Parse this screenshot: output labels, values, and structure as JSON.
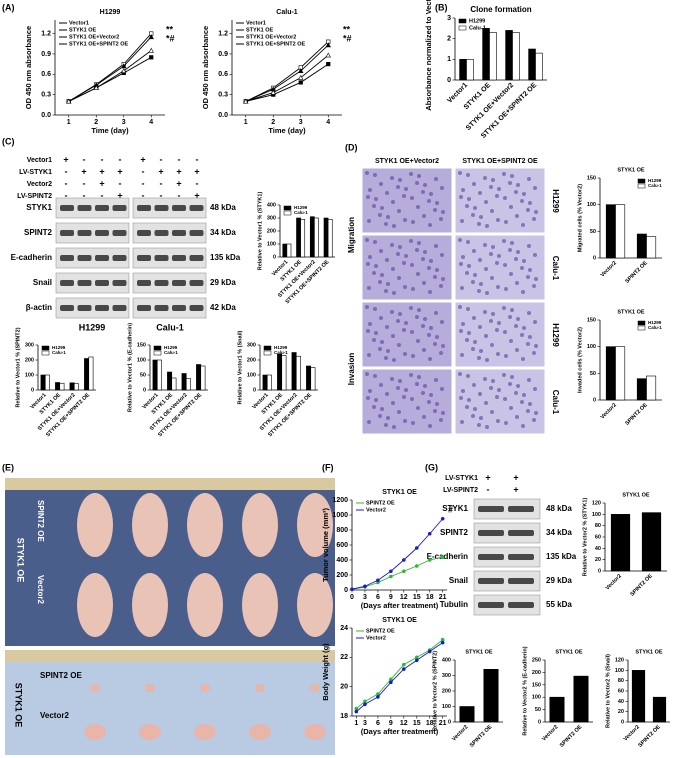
{
  "figure": {
    "panel_labels": [
      "(A)",
      "(B)",
      "(C)",
      "(D)",
      "(E)",
      "(F)",
      "(G)"
    ],
    "c_blot": {
      "conditions": [
        "Vector1",
        "LV-STYK1",
        "Vector2",
        "LV-SPINT2"
      ],
      "signs": [
        [
          "+",
          "-",
          "-",
          "-",
          "+",
          "-",
          "-",
          "-"
        ],
        [
          "-",
          "+",
          "+",
          "+",
          "-",
          "+",
          "+",
          "+"
        ],
        [
          "-",
          "-",
          "+",
          "-",
          "-",
          "-",
          "+",
          "-"
        ],
        [
          "-",
          "-",
          "-",
          "+",
          "-",
          "-",
          "-",
          "+"
        ]
      ],
      "proteins": [
        "STYK1",
        "SPINT2",
        "E-cadherin",
        "Snail",
        "β-actin"
      ],
      "sizes": [
        "48 kDa",
        "34 kDa",
        "135 kDa",
        "29 kDa",
        "42 kDa"
      ],
      "cell_lines": [
        "H1299",
        "Calu-1"
      ]
    },
    "d_images": {
      "columns": [
        "STYK1 OE+Vector2",
        "STYK1 OE+SPINT2 OE"
      ],
      "assays": [
        "Migration",
        "Invasion"
      ],
      "rows": [
        "H1299",
        "Calu-1",
        "H1299",
        "Calu-1"
      ]
    },
    "e_photo": {
      "upper_groups": [
        "SPINT2 OE",
        "Vector2"
      ],
      "upper_side": "STYK1 OE",
      "lower_groups": [
        "SPINT2 OE",
        "Vector2"
      ],
      "lower_side": "STYK1 OE"
    },
    "g_blot": {
      "conditions": [
        "LV-STYK1",
        "LV-SPINT2"
      ],
      "signs": [
        [
          "+",
          "+"
        ],
        [
          "-",
          "+"
        ]
      ],
      "proteins": [
        "STYK1",
        "SPINT2",
        "E-cadherin",
        "Snail",
        "Tubulin"
      ],
      "sizes": [
        "48 kDa",
        "34 kDa",
        "135 kDa",
        "29 kDa",
        "55 kDa"
      ]
    }
  },
  "chart_data": [
    {
      "type": "line",
      "title": "H1299",
      "xlabel": "Time (day)",
      "ylabel": "OD 450 nm absorbance",
      "x": [
        1,
        2,
        3,
        4
      ],
      "xlim": [
        0.5,
        4.5
      ],
      "xticks": [
        1,
        2,
        3,
        4
      ],
      "ylim": [
        0,
        1.4
      ],
      "yticks": [
        {
          "value": 0,
          "label": "0.0"
        },
        0.3,
        0.6,
        0.9,
        1.2
      ],
      "legend": "upper left",
      "annotations": [
        "**",
        "*#"
      ],
      "series": [
        {
          "name": "Vector1",
          "color": "#000000",
          "values": [
            0.2,
            0.4,
            0.62,
            0.85
          ]
        },
        {
          "name": "STYK1 OE",
          "color": "#000000",
          "values": [
            0.2,
            0.45,
            0.75,
            1.2
          ]
        },
        {
          "name": "STYK1 OE+Vector2",
          "color": "#000000",
          "values": [
            0.2,
            0.44,
            0.72,
            1.15
          ]
        },
        {
          "name": "STYK1 OE+SPINT2 OE",
          "color": "#000000",
          "values": [
            0.2,
            0.4,
            0.65,
            0.95
          ]
        }
      ]
    },
    {
      "type": "line",
      "title": "Calu-1",
      "xlabel": "Time (day)",
      "ylabel": "OD 450 nm absorbance",
      "x": [
        1,
        2,
        3,
        4
      ],
      "xlim": [
        0.5,
        4.5
      ],
      "xticks": [
        1,
        2,
        3,
        4
      ],
      "ylim": [
        0,
        1.4
      ],
      "yticks": [
        {
          "value": 0,
          "label": "0.0"
        },
        0.3,
        0.6,
        0.9,
        1.2
      ],
      "legend": "upper left",
      "annotations": [
        "**",
        "*#"
      ],
      "series": [
        {
          "name": "Vector1",
          "color": "#000000",
          "values": [
            0.2,
            0.3,
            0.48,
            0.75
          ]
        },
        {
          "name": "STYK1 OE",
          "color": "#000000",
          "values": [
            0.2,
            0.4,
            0.7,
            1.08
          ]
        },
        {
          "name": "STYK1 OE+Vector2",
          "color": "#000000",
          "values": [
            0.2,
            0.38,
            0.65,
            1.03
          ]
        },
        {
          "name": "STYK1 OE+SPINT2 OE",
          "color": "#000000",
          "values": [
            0.2,
            0.33,
            0.55,
            0.88
          ]
        }
      ]
    },
    {
      "type": "bar",
      "title": "Clone formation",
      "ylabel": "Absorbance normalized to Vector1",
      "categories": [
        "Vector1",
        "STYK1 OE",
        "STYK1 OE+Vector2",
        "STYK1 OE+SPINT2 OE"
      ],
      "ylim": [
        0,
        3
      ],
      "yticks": [
        0,
        1,
        2,
        3
      ],
      "legend": "upper left",
      "series": [
        {
          "name": "H1299",
          "color": "#000000",
          "values": [
            1,
            2.5,
            2.4,
            1.5
          ]
        },
        {
          "name": "Calu-1",
          "color": "#ffffff",
          "values": [
            1,
            2.3,
            2.3,
            1.3
          ]
        }
      ]
    },
    {
      "type": "bar",
      "ylabel": "Relative to Vector1 % (STYK1)",
      "categories": [
        "Vector1",
        "STYK1 OE",
        "STYK1 OE+Vector2",
        "STYK1 OE+SPINT2 OE"
      ],
      "ylim": [
        0,
        400
      ],
      "yticks": [
        0,
        100,
        200,
        300,
        400
      ],
      "legend": "upper left",
      "series": [
        {
          "name": "H1299",
          "color": "#000000",
          "values": [
            100,
            300,
            310,
            300
          ]
        },
        {
          "name": "Calu-1",
          "color": "#ffffff",
          "values": [
            100,
            290,
            300,
            290
          ]
        }
      ]
    },
    {
      "type": "bar",
      "ylabel": "Relative to Vector1 % (SPINT2)",
      "categories": [
        "Vector1",
        "STYK1 OE",
        "STYK1 OE+Vector2",
        "STYK1 OE+SPINT2 OE"
      ],
      "ylim": [
        0,
        300
      ],
      "yticks": [
        0,
        100,
        200,
        300
      ],
      "legend": "upper left",
      "series": [
        {
          "name": "H1299",
          "color": "#000000",
          "values": [
            100,
            50,
            48,
            210
          ]
        },
        {
          "name": "Calu-1",
          "color": "#ffffff",
          "values": [
            100,
            45,
            42,
            220
          ]
        }
      ]
    },
    {
      "type": "bar",
      "ylabel": "Relative to Vector1 % (E-cadherin)",
      "categories": [
        "Vector1",
        "STYK1 OE",
        "STYK1 OE+Vector2",
        "STYK1 OE+SPINT2 OE"
      ],
      "ylim": [
        0,
        150
      ],
      "yticks": [
        0,
        50,
        100,
        150
      ],
      "legend": "upper left",
      "series": [
        {
          "name": "H1299",
          "color": "#000000",
          "values": [
            100,
            60,
            55,
            85
          ]
        },
        {
          "name": "Calu-1",
          "color": "#ffffff",
          "values": [
            100,
            40,
            38,
            80
          ]
        }
      ]
    },
    {
      "type": "bar",
      "ylabel": "Relative to Vector1 % (Snail)",
      "categories": [
        "Vector1",
        "STYK1 OE",
        "STYK1 OE+Vector2",
        "STYK1 OE+SPINT2 OE"
      ],
      "ylim": [
        0,
        300
      ],
      "yticks": [
        0,
        100,
        200,
        300
      ],
      "legend": "upper left",
      "series": [
        {
          "name": "H1299",
          "color": "#000000",
          "values": [
            100,
            240,
            250,
            160
          ]
        },
        {
          "name": "Calu-1",
          "color": "#ffffff",
          "values": [
            100,
            230,
            225,
            150
          ]
        }
      ]
    },
    {
      "type": "bar",
      "title": "STYK1 OE",
      "ylabel": "Migrated cells (% Vector2)",
      "categories": [
        "Vector2",
        "SPINT2 OE"
      ],
      "ylim": [
        0,
        150
      ],
      "yticks": [
        0,
        50,
        100,
        150
      ],
      "legend": "upper right",
      "series": [
        {
          "name": "H1299",
          "color": "#000000",
          "values": [
            100,
            45
          ]
        },
        {
          "name": "Calu-1",
          "color": "#ffffff",
          "values": [
            100,
            40
          ]
        }
      ]
    },
    {
      "type": "bar",
      "title": "STYK1 OE",
      "ylabel": "Invaded cells (% Vector2)",
      "categories": [
        "Vector2",
        "SPINT2 OE"
      ],
      "ylim": [
        0,
        150
      ],
      "yticks": [
        0,
        50,
        100,
        150
      ],
      "legend": "upper right",
      "series": [
        {
          "name": "H1299",
          "color": "#000000",
          "values": [
            100,
            40
          ]
        },
        {
          "name": "Calu-1",
          "color": "#ffffff",
          "values": [
            100,
            45
          ]
        }
      ]
    },
    {
      "type": "line",
      "title": "STYK1 OE",
      "xlabel": "(Days after treatment)",
      "ylabel": "Tumor volume (mm³)",
      "x": [
        0,
        3,
        6,
        9,
        12,
        15,
        18,
        21
      ],
      "xlim": [
        0,
        22
      ],
      "xticks": [
        0,
        3,
        6,
        9,
        12,
        15,
        18,
        21
      ],
      "ylim": [
        0,
        1200
      ],
      "yticks": [
        0,
        200,
        400,
        600,
        800,
        1000,
        1200
      ],
      "legend": "upper left",
      "annotations": [
        "#"
      ],
      "series": [
        {
          "name": "SPINT2 OE",
          "color": "#2db82d",
          "values": [
            10,
            40,
            100,
            180,
            250,
            320,
            400,
            440
          ]
        },
        {
          "name": "Vector2",
          "color": "#1a1acc",
          "values": [
            10,
            50,
            130,
            250,
            400,
            560,
            750,
            950
          ]
        }
      ]
    },
    {
      "type": "line",
      "title": "STYK1 OE",
      "xlabel": "(Days after treatment)",
      "ylabel": "Body Weight (g)",
      "x": [
        1,
        3,
        6,
        9,
        12,
        15,
        18,
        21
      ],
      "xlim": [
        0,
        22
      ],
      "xticks": [
        1,
        3,
        6,
        9,
        12,
        15,
        18,
        21
      ],
      "ylim": [
        18,
        24
      ],
      "yticks": [
        18,
        20,
        22,
        24
      ],
      "legend": "upper left",
      "series": [
        {
          "name": "SPINT2 OE",
          "color": "#2db82d",
          "values": [
            18.5,
            19,
            19.5,
            20.5,
            21.5,
            22,
            22.5,
            23.2
          ]
        },
        {
          "name": "Vector2",
          "color": "#1a1acc",
          "values": [
            18.3,
            18.8,
            19.3,
            20.3,
            21.2,
            21.8,
            22.4,
            23
          ]
        }
      ]
    },
    {
      "type": "bar",
      "title": "STYK1 OE",
      "ylabel": "Relative to Vector2 % (STYK1)",
      "categories": [
        "Vector2",
        "SPINT2 OE"
      ],
      "ylim": [
        0,
        120
      ],
      "yticks": [
        0,
        20,
        40,
        60,
        80,
        100,
        120
      ],
      "series": [
        {
          "color": "#000000",
          "values": [
            100,
            103
          ]
        }
      ]
    },
    {
      "type": "bar",
      "title": "STYK1 OE",
      "ylabel": "Relative to Vector2 % (SPINT2)",
      "categories": [
        "Vector2",
        "SPINT2 OE"
      ],
      "ylim": [
        0,
        400
      ],
      "yticks": [
        0,
        100,
        200,
        300,
        400
      ],
      "series": [
        {
          "color": "#000000",
          "values": [
            100,
            340
          ]
        }
      ]
    },
    {
      "type": "bar",
      "title": "STYK1 OE",
      "ylabel": "Relative to Vector2 % (E-cadherin)",
      "categories": [
        "Vector2",
        "SPINT2 OE"
      ],
      "ylim": [
        0,
        250
      ],
      "yticks": [
        0,
        50,
        100,
        150,
        200,
        250
      ],
      "series": [
        {
          "color": "#000000",
          "values": [
            100,
            185
          ]
        }
      ]
    },
    {
      "type": "bar",
      "title": "STYK1 OE",
      "ylabel": "Relative to Vector2 % (Snail)",
      "categories": [
        "Vector2",
        "SPINT2 OE"
      ],
      "ylim": [
        0,
        120
      ],
      "yticks": [
        0,
        20,
        40,
        60,
        80,
        100,
        120
      ],
      "series": [
        {
          "color": "#000000",
          "values": [
            100,
            48
          ]
        }
      ]
    }
  ]
}
